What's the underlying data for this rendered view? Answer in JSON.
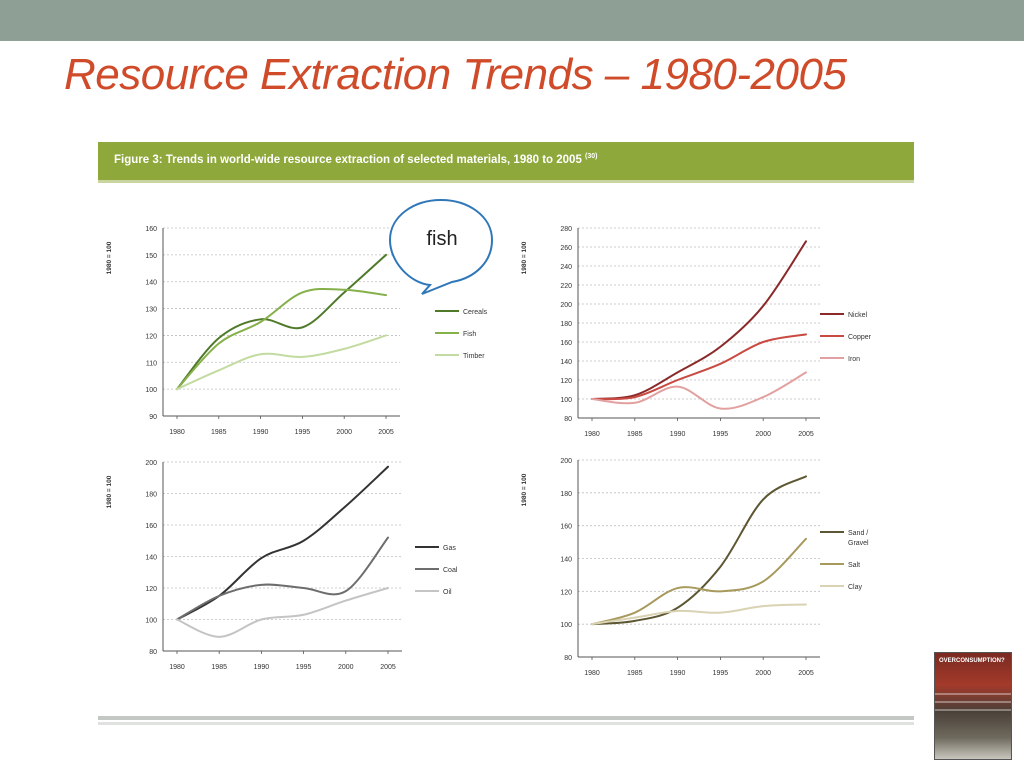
{
  "slide": {
    "title": "Resource Extraction Trends – 1980-2005",
    "figure_caption": "Figure 3: Trends in world-wide resource extraction of selected materials, 1980 to 2005",
    "figure_caption_ref": "(30)",
    "callout_text": "fish",
    "book_cover_title": "OVERCONSUMPTION?"
  },
  "chart_data": [
    {
      "type": "line",
      "ylabel": "1980 = 100",
      "x": [
        1980,
        1985,
        1990,
        1995,
        2000,
        2005
      ],
      "ylim": [
        90,
        160
      ],
      "yticks": [
        90,
        100,
        110,
        120,
        130,
        140,
        150,
        160
      ],
      "legend": "right",
      "grid": true,
      "series": [
        {
          "name": "Cereals",
          "color": "#4f7a2a",
          "values": [
            100,
            119,
            126,
            123,
            136,
            150
          ]
        },
        {
          "name": "Fish",
          "color": "#86b04a",
          "values": [
            100,
            117,
            125,
            136,
            137,
            135
          ]
        },
        {
          "name": "Timber",
          "color": "#c3dba0",
          "values": [
            100,
            107,
            113,
            112,
            115,
            120
          ]
        }
      ]
    },
    {
      "type": "line",
      "ylabel": "1980 = 100",
      "x": [
        1980,
        1985,
        1990,
        1995,
        2000,
        2005
      ],
      "ylim": [
        80,
        280
      ],
      "yticks": [
        80,
        100,
        120,
        140,
        160,
        180,
        200,
        220,
        240,
        260,
        280
      ],
      "legend": "right",
      "grid": true,
      "series": [
        {
          "name": "Nickel",
          "color": "#8a2a2a",
          "values": [
            100,
            104,
            128,
            155,
            198,
            266
          ]
        },
        {
          "name": "Copper",
          "color": "#c94a42",
          "values": [
            100,
            102,
            120,
            137,
            160,
            168
          ]
        },
        {
          "name": "Iron",
          "color": "#e3a0a0",
          "values": [
            100,
            96,
            113,
            90,
            102,
            128
          ]
        }
      ]
    },
    {
      "type": "line",
      "ylabel": "1980 = 100",
      "x": [
        1980,
        1985,
        1990,
        1995,
        2000,
        2005
      ],
      "ylim": [
        80,
        200
      ],
      "yticks": [
        80,
        100,
        120,
        140,
        160,
        180,
        200
      ],
      "legend": "right",
      "grid": true,
      "series": [
        {
          "name": "Gas",
          "color": "#333333",
          "values": [
            100,
            115,
            139,
            150,
            172,
            197
          ]
        },
        {
          "name": "Coal",
          "color": "#6d6d6d",
          "values": [
            100,
            115,
            122,
            120,
            118,
            152
          ]
        },
        {
          "name": "Oil",
          "color": "#c4c4c4",
          "values": [
            100,
            89,
            100,
            103,
            112,
            120
          ]
        }
      ]
    },
    {
      "type": "line",
      "ylabel": "1980 = 100",
      "x": [
        1980,
        1985,
        1990,
        1995,
        2000,
        2005
      ],
      "ylim": [
        80,
        200
      ],
      "yticks": [
        80,
        100,
        120,
        140,
        160,
        180,
        200
      ],
      "legend": "right",
      "grid": true,
      "series": [
        {
          "name": "Sand / Gravel",
          "label_lines": [
            "Sand /",
            "Gravel"
          ],
          "color": "#5c5632",
          "values": [
            100,
            102,
            110,
            135,
            176,
            190
          ]
        },
        {
          "name": "Salt",
          "color": "#a79a5c",
          "values": [
            100,
            107,
            122,
            120,
            126,
            152
          ]
        },
        {
          "name": "Clay",
          "color": "#d9d2b3",
          "values": [
            100,
            104,
            108,
            107,
            111,
            112
          ]
        }
      ]
    }
  ]
}
